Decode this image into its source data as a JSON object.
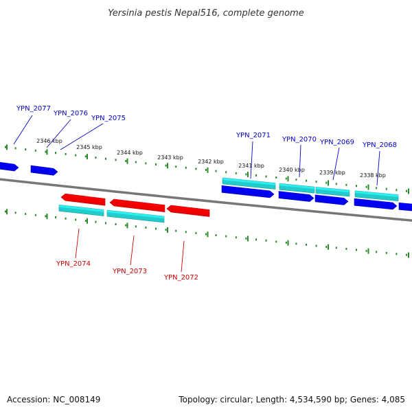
{
  "title": "Yersinia pestis Nepal516, complete genome",
  "footer": {
    "accession": "Accession: NC_008149",
    "info": "Topology: circular; Length: 4,534,590 bp; Genes: 4,085"
  },
  "colors": {
    "forward_gene": "#0000ee",
    "reverse_gene": "#ee0000",
    "cds_feature": "#22cccc",
    "backbone": "#777777",
    "tick": "#2a8a2a",
    "label_forward": "#0000cc",
    "label_reverse": "#cc0000"
  },
  "scale_labels": [
    "2346 kbp",
    "2345 kbp",
    "2344 kbp",
    "2343 kbp",
    "2342 kbp",
    "2341 kbp",
    "2340 kbp",
    "2339 kbp",
    "2338 kbp"
  ],
  "genes_top": [
    "YPN_2077",
    "YPN_2076",
    "YPN_2075",
    "YPN_2071",
    "YPN_2070",
    "YPN_2069",
    "YPN_2068"
  ],
  "genes_bottom": [
    "YPN_2074",
    "YPN_2073",
    "YPN_2072"
  ]
}
